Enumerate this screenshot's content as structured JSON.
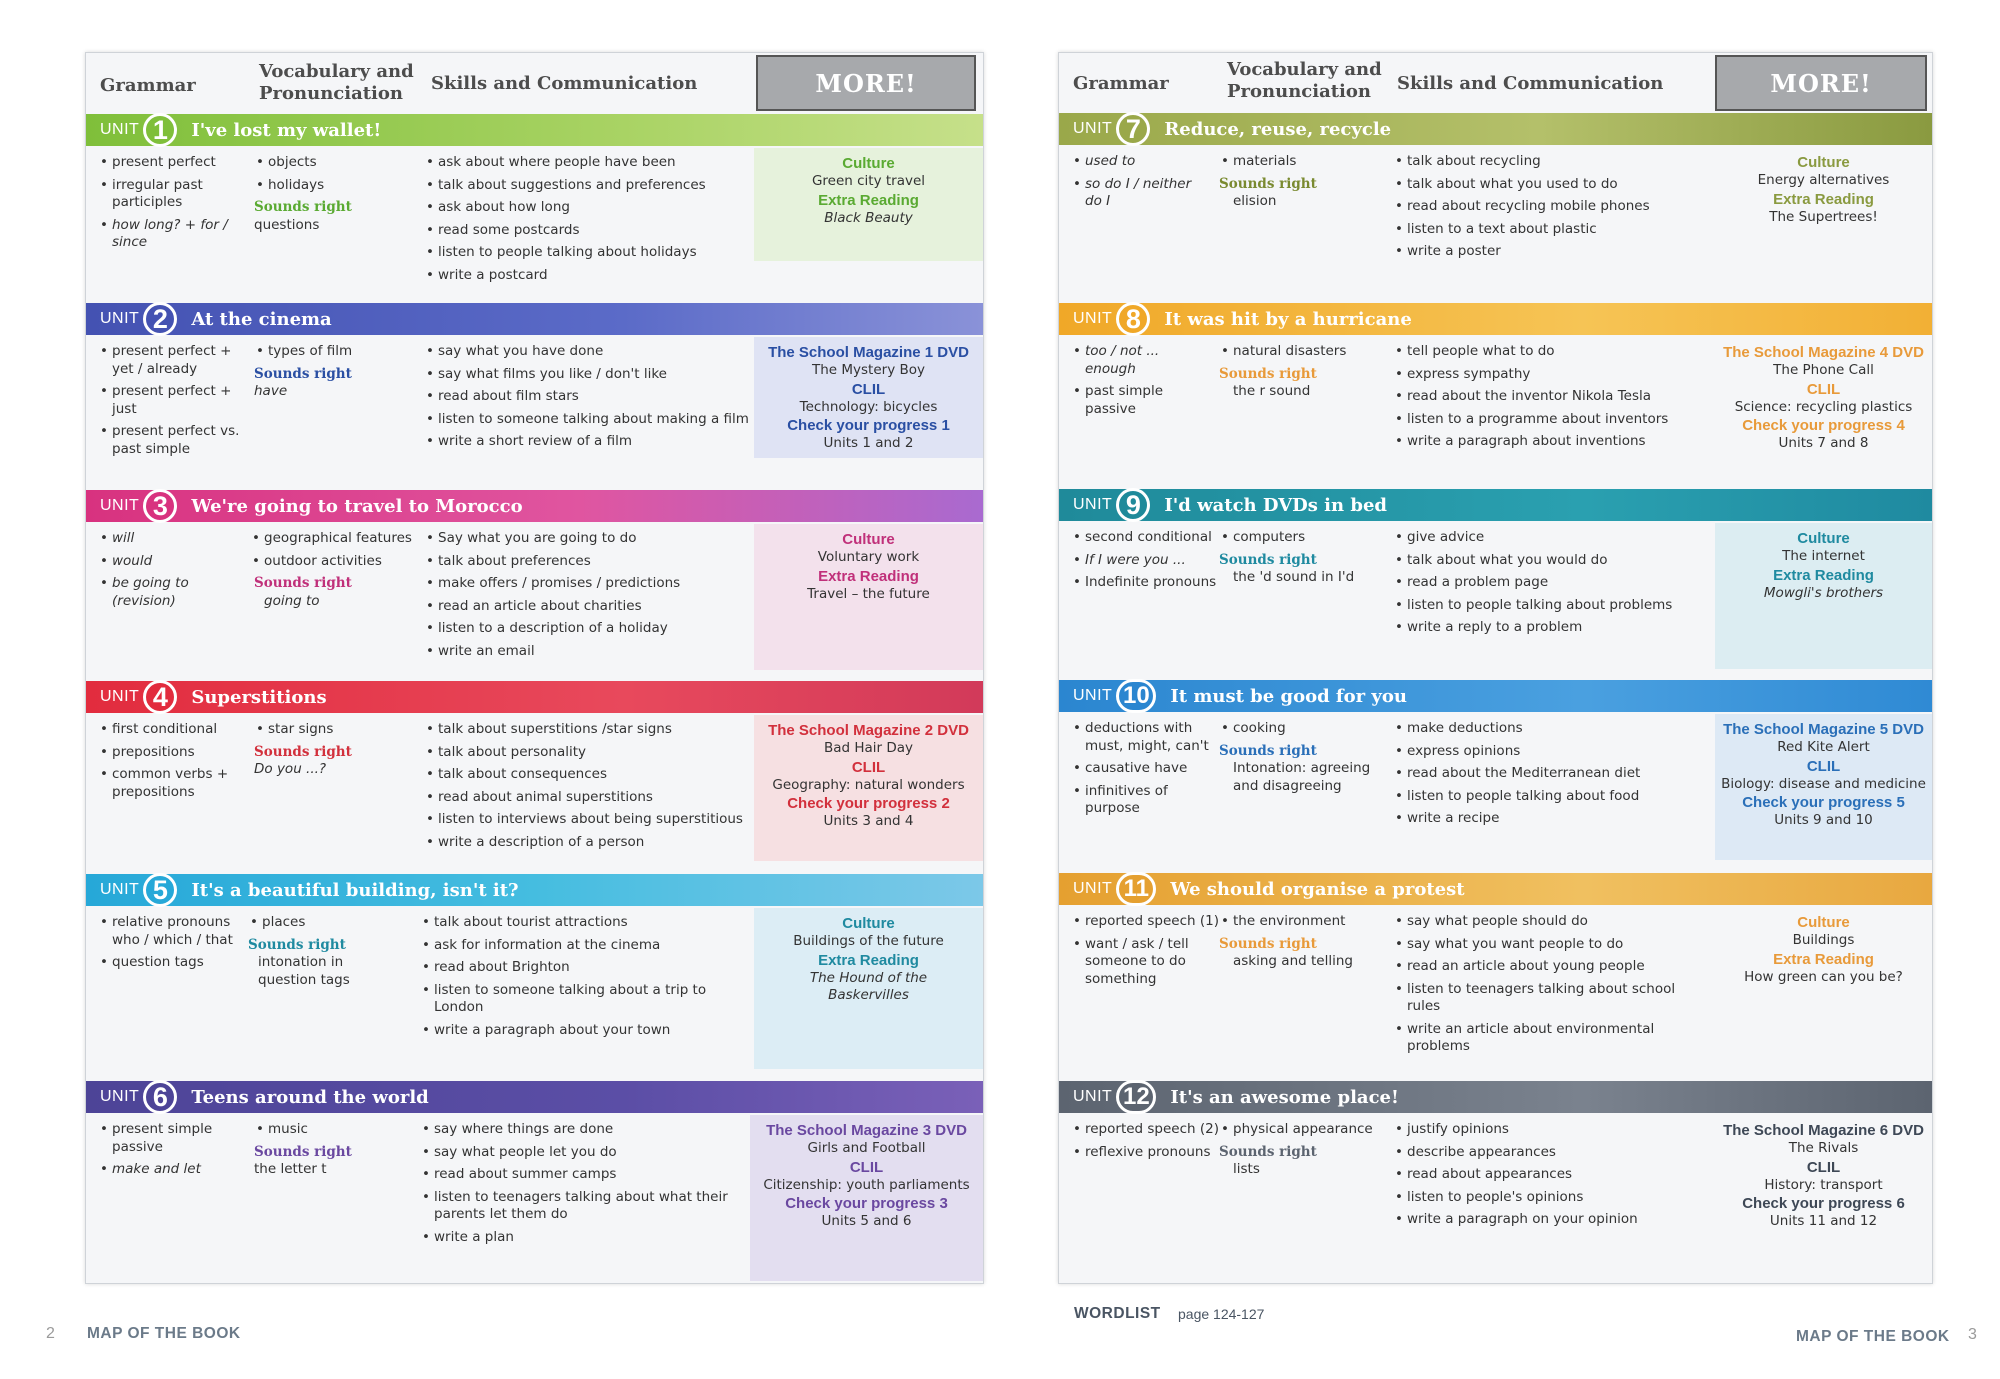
{
  "header": {
    "grammar": "Grammar",
    "vocab_line1": "Vocabulary and",
    "vocab_line2": "Pronunciation",
    "skills": "Skills and Communication",
    "more": "MORE!"
  },
  "unit_label": "UNIT",
  "units": {
    "u1": {
      "number": "1",
      "title": "I've lost my wallet!",
      "grammar": [
        "present perfect",
        "irregular past participles",
        "how long? + for / since"
      ],
      "vocab": [
        "objects",
        "holidays"
      ],
      "sounds_right_label": "Sounds right",
      "sounds_right": "questions",
      "skills": [
        "ask about where people have been",
        "talk about suggestions and preferences",
        "ask about how long",
        "read some postcards",
        "listen to people talking about holidays",
        "write a postcard"
      ],
      "more": {
        "h1": "Culture",
        "t1": "Green city travel",
        "h2": "Extra Reading",
        "t2": "Black Beauty"
      }
    },
    "u2": {
      "number": "2",
      "title": "At the cinema",
      "grammar": [
        "present perfect + yet / already",
        "present perfect + just",
        "present perfect vs. past simple"
      ],
      "vocab": [
        "types of film"
      ],
      "sounds_right_label": "Sounds right",
      "sounds_right": "have",
      "skills": [
        "say what you have done",
        "say what films you like / don't like",
        "read about film stars",
        "listen to someone talking about making a film",
        "write a short review of a film"
      ],
      "more": {
        "h1": "The School Magazine 1 DVD",
        "t1": "The Mystery Boy",
        "h2": "CLIL",
        "t2": "Technology: bicycles",
        "h3": "Check your progress 1",
        "t3": "Units 1 and 2"
      }
    },
    "u3": {
      "number": "3",
      "title": "We're going to travel to Morocco",
      "grammar": [
        "will",
        "would",
        "be going to (revision)"
      ],
      "vocab": [
        "geographical features",
        "outdoor activities"
      ],
      "sounds_right_label": "Sounds right",
      "sounds_right": "going to",
      "skills": [
        "Say what you are going to do",
        "talk about preferences",
        "make offers / promises / predictions",
        "read an article about charities",
        "listen to a description of a holiday",
        "write an email"
      ],
      "more": {
        "h1": "Culture",
        "t1": "Voluntary work",
        "h2": "Extra Reading",
        "t2": "Travel – the future"
      }
    },
    "u4": {
      "number": "4",
      "title": "Superstitions",
      "grammar": [
        "first conditional",
        "prepositions",
        "common verbs + prepositions"
      ],
      "vocab": [
        "star signs"
      ],
      "sounds_right_label": "Sounds right",
      "sounds_right": "Do you ...?",
      "skills": [
        "talk about superstitions /star signs",
        "talk about personality",
        "talk about consequences",
        "read about animal superstitions",
        "listen to interviews about being superstitious",
        "write a description of a person"
      ],
      "more": {
        "h1": "The School Magazine 2 DVD",
        "t1": "Bad Hair Day",
        "h2": "CLIL",
        "t2": "Geography: natural wonders",
        "h3": "Check your progress 2",
        "t3": "Units 3 and 4"
      }
    },
    "u5": {
      "number": "5",
      "title": "It's a beautiful building, isn't it?",
      "grammar": [
        "relative pronouns who / which / that",
        "question tags"
      ],
      "vocab": [
        "places"
      ],
      "sounds_right_label": "Sounds right",
      "sounds_right": "intonation in question tags",
      "skills": [
        "talk about tourist attractions",
        "ask for information at the cinema",
        "read about Brighton",
        "listen to someone talking about a trip to London",
        "write a paragraph about your town"
      ],
      "more": {
        "h1": "Culture",
        "t1": "Buildings of the future",
        "h2": "Extra Reading",
        "t2": "The Hound of the Baskervilles"
      }
    },
    "u6": {
      "number": "6",
      "title": "Teens around the world",
      "grammar": [
        "present simple passive",
        "make and let"
      ],
      "vocab": [
        "music"
      ],
      "sounds_right_label": "Sounds right",
      "sounds_right": "the letter t",
      "skills": [
        "say where things are done",
        "say what people let you do",
        "read about summer camps",
        "listen to teenagers talking about what their parents let them do",
        "write a plan"
      ],
      "more": {
        "h1": "The School Magazine 3 DVD",
        "t1": "Girls and Football",
        "h2": "CLIL",
        "t2": "Citizenship: youth parliaments",
        "h3": "Check your progress 3",
        "t3": "Units 5 and 6"
      }
    },
    "u7": {
      "number": "7",
      "title": "Reduce, reuse, recycle",
      "grammar": [
        "used to",
        "so do I / neither do I"
      ],
      "vocab": [
        "materials"
      ],
      "sounds_right_label": "Sounds right",
      "sounds_right": "elision",
      "skills": [
        "talk about recycling",
        "talk about what you used to do",
        "read about recycling mobile phones",
        "listen to a text about plastic",
        "write a poster"
      ],
      "more": {
        "h1": "Culture",
        "t1": "Energy alternatives",
        "h2": "Extra Reading",
        "t2": "The Supertrees!"
      }
    },
    "u8": {
      "number": "8",
      "title": "It was hit by a hurricane",
      "grammar": [
        "too / not ... enough",
        "past simple passive"
      ],
      "vocab": [
        "natural disasters"
      ],
      "sounds_right_label": "Sounds right",
      "sounds_right": "the r sound",
      "skills": [
        "tell people what to do",
        "express sympathy",
        "read about the inventor Nikola Tesla",
        "listen to a programme about inventors",
        "write a paragraph about inventions"
      ],
      "more": {
        "h1": "The School Magazine 4 DVD",
        "t1": "The Phone Call",
        "h2": "CLIL",
        "t2": "Science: recycling plastics",
        "h3": "Check your progress 4",
        "t3": "Units 7 and 8"
      }
    },
    "u9": {
      "number": "9",
      "title": "I'd watch DVDs in bed",
      "grammar": [
        "second conditional",
        "If I were you ...",
        "Indefinite pronouns"
      ],
      "vocab": [
        "computers"
      ],
      "sounds_right_label": "Sounds right",
      "sounds_right": "the 'd sound in I'd",
      "skills": [
        "give advice",
        "talk about what you would do",
        "read a problem page",
        "listen to people talking about problems",
        "write a reply to a problem"
      ],
      "more": {
        "h1": "Culture",
        "t1": "The internet",
        "h2": "Extra Reading",
        "t2": "Mowgli's brothers"
      }
    },
    "u10": {
      "number": "10",
      "title": "It must be good for you",
      "grammar": [
        "deductions with must, might, can't",
        "causative have",
        "infinitives of purpose"
      ],
      "vocab": [
        "cooking"
      ],
      "sounds_right_label": "Sounds right",
      "sounds_right": "Intonation: agreeing and disagreeing",
      "skills": [
        "make deductions",
        "express opinions",
        "read about the Mediterranean diet",
        "listen to people talking about food",
        "write a recipe"
      ],
      "more": {
        "h1": "The School Magazine 5 DVD",
        "t1": "Red Kite Alert",
        "h2": "CLIL",
        "t2": "Biology: disease and medicine",
        "h3": "Check your progress 5",
        "t3": "Units 9 and 10"
      }
    },
    "u11": {
      "number": "11",
      "title": "We should organise a protest",
      "grammar": [
        "reported speech (1)",
        "want / ask / tell someone to do something"
      ],
      "vocab": [
        "the environment"
      ],
      "sounds_right_label": "Sounds right",
      "sounds_right": "asking and telling",
      "skills": [
        "say what people should do",
        "say what you want people to do",
        "read an article about young people",
        "listen to teenagers talking about school rules",
        "write an article about environmental problems"
      ],
      "more": {
        "h1": "Culture",
        "t1": "Buildings",
        "h2": "Extra Reading",
        "t2": "How green can you be?"
      }
    },
    "u12": {
      "number": "12",
      "title": "It's an awesome place!",
      "grammar": [
        "reported speech (2)",
        "reflexive pronouns"
      ],
      "vocab": [
        "physical appearance"
      ],
      "sounds_right_label": "Sounds right",
      "sounds_right": "lists",
      "skills": [
        "justify opinions",
        "describe appearances",
        "read about appearances",
        "listen to people's opinions",
        "write a paragraph on your opinion"
      ],
      "more": {
        "h1": "The School Magazine 6 DVD",
        "t1": "The Rivals",
        "h2": "CLIL",
        "t2": "History: transport",
        "h3": "Check your progress 6",
        "t3": "Units 11 and 12"
      }
    }
  },
  "footer": {
    "left_page_number": "2",
    "left_title": "MAP OF THE BOOK",
    "wordlist": "WORDLIST",
    "wordlist_pages": "page 124-127",
    "right_title": "MAP OF THE BOOK",
    "right_page_number": "3"
  },
  "colors": {
    "u1": "#8cc63f",
    "u2": "#4b58b8",
    "u3": "#d63384",
    "u4": "#e0303f",
    "u5": "#2aa9d8",
    "u6": "#4f4798",
    "u7": "#9aa84a",
    "u8": "#f0a828",
    "u9": "#1f8a9a",
    "u10": "#2b86d0",
    "u11": "#e5a030",
    "u12": "#5c6470",
    "culture_green": "#5aaa32",
    "dvd_blue": "#2a4fa3",
    "dvd_red": "#d2303c",
    "orange": "#e89a3a",
    "teal": "#1f8aa0",
    "pink": "#c0307a",
    "purple": "#6a48a0"
  }
}
